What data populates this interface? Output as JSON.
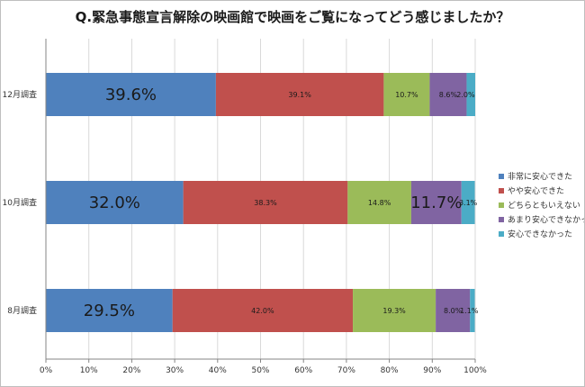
{
  "chart_data": {
    "type": "bar",
    "orientation": "horizontal",
    "stacked": true,
    "title": "Q.緊急事態宣言解除の映画館で映画をご覧になってどう感じましたか？",
    "xlim": [
      0,
      100
    ],
    "x_ticks": [
      "0%",
      "10%",
      "20%",
      "30%",
      "40%",
      "50%",
      "60%",
      "70%",
      "80%",
      "90%",
      "100%"
    ],
    "grid": "vertical",
    "legend_position": "right",
    "categories": [
      "12月調査",
      "10月調査",
      "8月調査"
    ],
    "series": [
      {
        "name": "非常に安心できた",
        "color": "#4f81bd",
        "values": [
          39.6,
          32.0,
          29.5
        ],
        "labels": [
          "39.6%",
          "32.0%",
          "29.5%"
        ]
      },
      {
        "name": "やや安心できた",
        "color": "#c0504d",
        "values": [
          39.1,
          38.3,
          42.0
        ],
        "labels": [
          "39.1%",
          "38.3%",
          "42.0%"
        ]
      },
      {
        "name": "どちらともいえない",
        "color": "#9bbb59",
        "values": [
          10.7,
          14.8,
          19.3
        ],
        "labels": [
          "10.7%",
          "14.8%",
          "19.3%"
        ]
      },
      {
        "name": "あまり安心できなかった",
        "color": "#8064a2",
        "values": [
          8.6,
          11.7,
          8.0
        ],
        "labels": [
          "8.6%",
          "11.7%",
          "8.0%"
        ]
      },
      {
        "name": "安心できなかった",
        "color": "#4bacc6",
        "values": [
          2.0,
          3.1,
          1.1
        ],
        "labels": [
          "2.0%",
          "3.1%",
          "1.1%"
        ]
      }
    ]
  }
}
